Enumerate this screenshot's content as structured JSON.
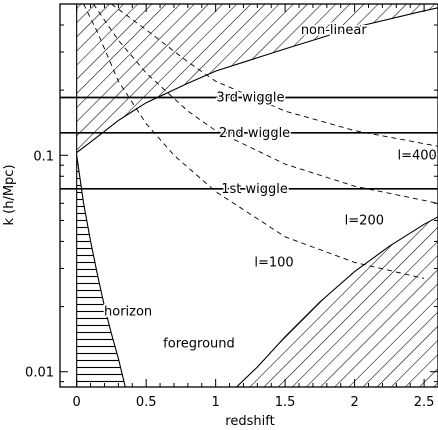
{
  "chart_data": {
    "type": "line",
    "title": "",
    "xlabel": "redshift",
    "ylabel": "k (h/Mpc)",
    "xlim": [
      -0.12,
      2.6
    ],
    "ylim": [
      0.0085,
      0.5
    ],
    "yscale": "log",
    "grid": false,
    "legend": "none",
    "x_ticks": [
      0,
      0.5,
      1,
      1.5,
      2,
      2.5
    ],
    "x_tick_labels": [
      "0",
      "0.5",
      "1",
      "1.5",
      "2",
      "2.5"
    ],
    "y_tick_labels": [
      {
        "value": 0.1,
        "label": "0.1"
      },
      {
        "value": 0.01,
        "label": "0.01"
      }
    ],
    "series": [
      {
        "name": "1st wiggle",
        "style": "solid",
        "points": [
          [
            -0.12,
            0.07
          ],
          [
            2.6,
            0.07
          ]
        ]
      },
      {
        "name": "2nd wiggle",
        "style": "solid",
        "points": [
          [
            -0.12,
            0.127
          ],
          [
            2.6,
            0.127
          ]
        ]
      },
      {
        "name": "3rd wiggle",
        "style": "solid",
        "points": [
          [
            -0.12,
            0.185
          ],
          [
            2.6,
            0.185
          ]
        ]
      },
      {
        "name": "l=100",
        "style": "dashed",
        "points": [
          [
            0.05,
            0.5
          ],
          [
            0.15,
            0.37
          ],
          [
            0.3,
            0.22
          ],
          [
            0.5,
            0.14
          ],
          [
            0.7,
            0.1
          ],
          [
            1.0,
            0.068
          ],
          [
            1.5,
            0.042
          ],
          [
            2.0,
            0.032
          ],
          [
            2.5,
            0.027
          ]
        ]
      },
      {
        "name": "l=200",
        "style": "dashed",
        "points": [
          [
            0.12,
            0.5
          ],
          [
            0.3,
            0.34
          ],
          [
            0.5,
            0.24
          ],
          [
            0.8,
            0.16
          ],
          [
            1.0,
            0.13
          ],
          [
            1.5,
            0.091
          ],
          [
            2.0,
            0.072
          ],
          [
            2.6,
            0.06
          ]
        ]
      },
      {
        "name": "l=400",
        "style": "dashed",
        "points": [
          [
            0.25,
            0.5
          ],
          [
            0.5,
            0.38
          ],
          [
            0.8,
            0.27
          ],
          [
            1.0,
            0.22
          ],
          [
            1.5,
            0.16
          ],
          [
            2.0,
            0.13
          ],
          [
            2.6,
            0.11
          ]
        ]
      },
      {
        "name": "non-linear",
        "style": "solid",
        "region": "above",
        "points": [
          [
            0,
            0.103
          ],
          [
            0.1,
            0.115
          ],
          [
            0.3,
            0.145
          ],
          [
            0.5,
            0.175
          ],
          [
            0.8,
            0.215
          ],
          [
            1.0,
            0.245
          ],
          [
            1.5,
            0.31
          ],
          [
            2.0,
            0.39
          ],
          [
            2.5,
            0.465
          ],
          [
            2.6,
            0.48
          ]
        ]
      },
      {
        "name": "foreground",
        "style": "solid",
        "region": "below",
        "points": [
          [
            1.15,
            0.0085
          ],
          [
            1.3,
            0.0105
          ],
          [
            1.5,
            0.0145
          ],
          [
            1.75,
            0.021
          ],
          [
            2.0,
            0.029
          ],
          [
            2.25,
            0.038
          ],
          [
            2.5,
            0.048
          ],
          [
            2.6,
            0.052
          ]
        ]
      },
      {
        "name": "horizon",
        "style": "solid",
        "region": "left",
        "points": [
          [
            0.0,
            0.1
          ],
          [
            0.05,
            0.06
          ],
          [
            0.1,
            0.04
          ],
          [
            0.15,
            0.028
          ],
          [
            0.2,
            0.02
          ],
          [
            0.25,
            0.015
          ],
          [
            0.3,
            0.0115
          ],
          [
            0.35,
            0.0085
          ]
        ]
      }
    ],
    "annotations": [
      {
        "text": "non-linear",
        "x": 1.85,
        "y": 0.38
      },
      {
        "text": "3rd wiggle",
        "x": 1.25,
        "y": 0.185
      },
      {
        "text": "2nd wiggle",
        "x": 1.28,
        "y": 0.127
      },
      {
        "text": "1st wiggle",
        "x": 1.28,
        "y": 0.07
      },
      {
        "text": "l=400",
        "x": 2.45,
        "y": 0.1
      },
      {
        "text": "l=200",
        "x": 2.07,
        "y": 0.05
      },
      {
        "text": "l=100",
        "x": 1.42,
        "y": 0.032
      },
      {
        "text": "horizon",
        "x": 0.37,
        "y": 0.019
      },
      {
        "text": "foreground",
        "x": 0.88,
        "y": 0.0135
      }
    ]
  }
}
